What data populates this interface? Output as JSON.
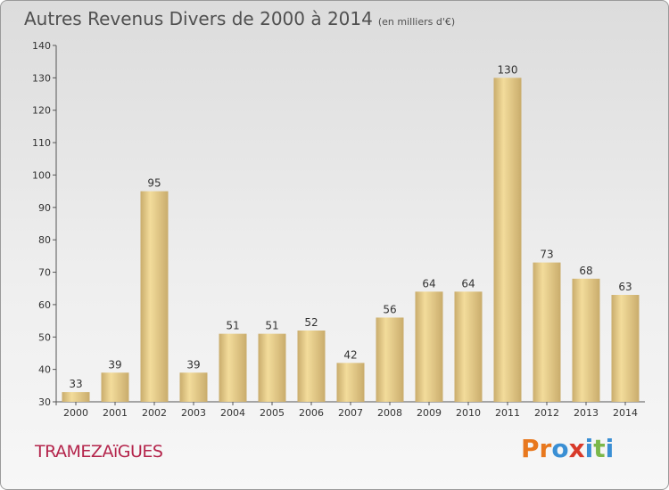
{
  "chart_data": {
    "type": "bar",
    "title": "Autres Revenus Divers de 2000 à 2014",
    "subtitle": "(en milliers d'€)",
    "categories": [
      "2000",
      "2001",
      "2002",
      "2003",
      "2004",
      "2005",
      "2006",
      "2007",
      "2008",
      "2009",
      "2010",
      "2011",
      "2012",
      "2013",
      "2014"
    ],
    "values": [
      33,
      39,
      95,
      39,
      51,
      51,
      52,
      42,
      56,
      64,
      64,
      130,
      73,
      68,
      63
    ],
    "ylim": [
      30,
      140
    ],
    "yticks": [
      30,
      40,
      50,
      60,
      70,
      80,
      90,
      100,
      110,
      120,
      130,
      140
    ],
    "xlabel": "",
    "ylabel": "",
    "grid": false,
    "data_labels": true
  },
  "footer": {
    "location": "TRAMEZAïGUES",
    "brand": "Proxiti"
  },
  "colors": {
    "bar_light": "#f3dc9b",
    "bar_dark": "#c9ac6c",
    "location_text": "#b4244b",
    "brand_letters": [
      "#e8781e",
      "#e8781e",
      "#3a8fd4",
      "#d83a2a",
      "#3a8fd4",
      "#7bb84a",
      "#3a8fd4"
    ]
  }
}
